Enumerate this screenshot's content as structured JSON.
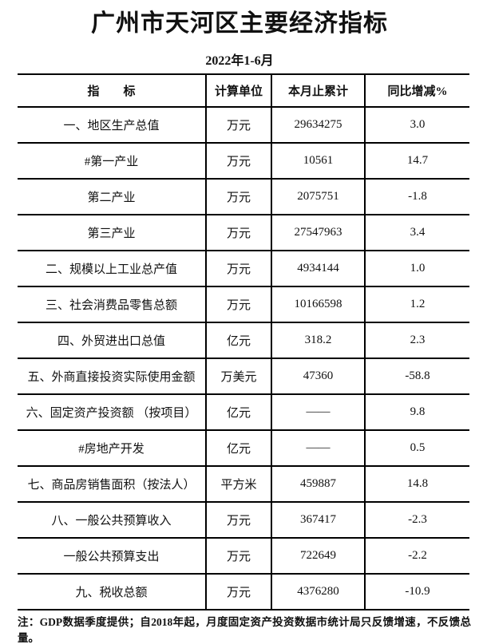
{
  "page": {
    "title": "广州市天河区主要经济指标",
    "subtitle": "2022年1-6月",
    "note": "注：GDP数据季度提供；自2018年起，月度固定资产投资数据市统计局只反馈增速，不反馈总量。"
  },
  "table": {
    "headers": {
      "indicator": "指　　标",
      "unit": "计算单位",
      "cumulative": "本月止累计",
      "yoy": "同比增减%"
    },
    "rows": [
      {
        "label": "一、地区生产总值",
        "unit": "万元",
        "value": "29634275",
        "yoy": "3.0"
      },
      {
        "label": "#第一产业",
        "unit": "万元",
        "value": "10561",
        "yoy": "14.7"
      },
      {
        "label": "第二产业",
        "unit": "万元",
        "value": "2075751",
        "yoy": "-1.8"
      },
      {
        "label": "第三产业",
        "unit": "万元",
        "value": "27547963",
        "yoy": "3.4"
      },
      {
        "label": "二、规模以上工业总产值",
        "unit": "万元",
        "value": "4934144",
        "yoy": "1.0"
      },
      {
        "label": "三、社会消费品零售总额",
        "unit": "万元",
        "value": "10166598",
        "yoy": "1.2"
      },
      {
        "label": "四、外贸进出口总值",
        "unit": "亿元",
        "value": "318.2",
        "yoy": "2.3"
      },
      {
        "label": "五、外商直接投资实际使用金额",
        "unit": "万美元",
        "value": "47360",
        "yoy": "-58.8"
      },
      {
        "label": "六、固定资产投资额 （按项目）",
        "unit": "亿元",
        "value": "——",
        "yoy": "9.8"
      },
      {
        "label": "#房地产开发",
        "unit": "亿元",
        "value": "——",
        "yoy": "0.5"
      },
      {
        "label": "七、商品房销售面积（按法人）",
        "unit": "平方米",
        "value": "459887",
        "yoy": "14.8"
      },
      {
        "label": "八、一般公共预算收入",
        "unit": "万元",
        "value": "367417",
        "yoy": "-2.3"
      },
      {
        "label": "一般公共预算支出",
        "unit": "万元",
        "value": "722649",
        "yoy": "-2.2"
      },
      {
        "label": "九、税收总额",
        "unit": "万元",
        "value": "4376280",
        "yoy": "-10.9"
      }
    ]
  }
}
